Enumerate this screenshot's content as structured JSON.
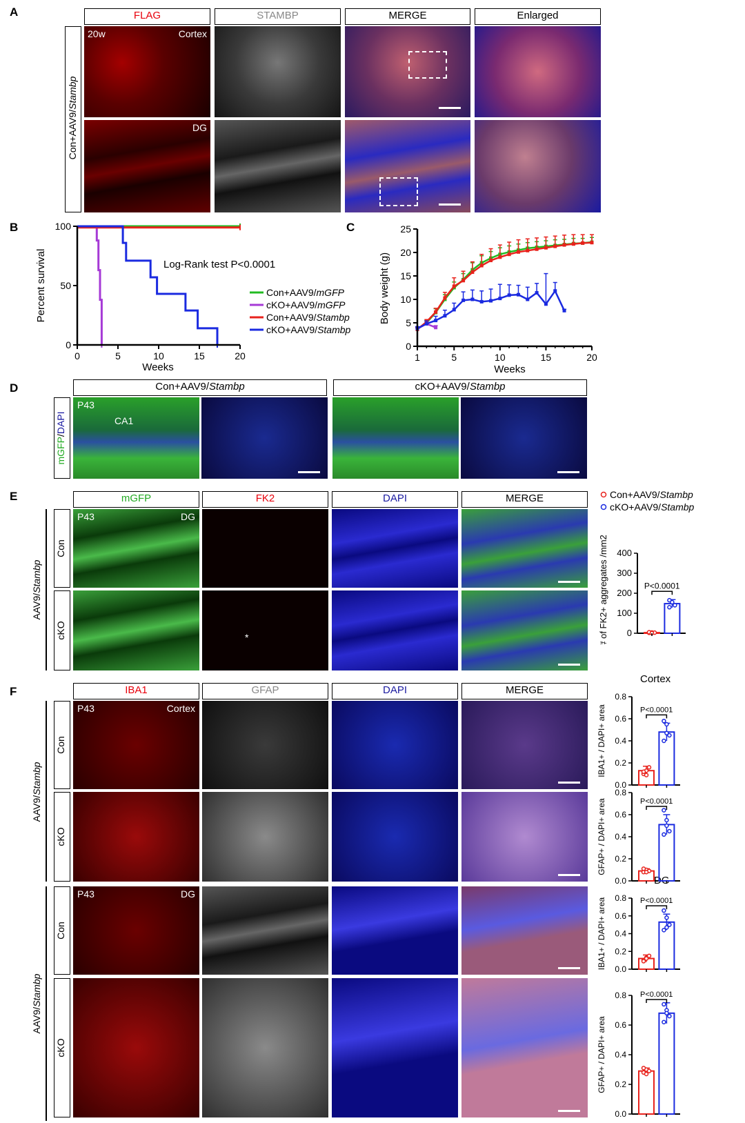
{
  "panel_letters": {
    "a": "A",
    "b": "B",
    "c": "C",
    "d": "D",
    "e": "E",
    "f": "F"
  },
  "panelA": {
    "headers": [
      "FLAG",
      "STAMBP",
      "MERGE",
      "Enlarged"
    ],
    "header_colors": [
      "#e8000b",
      "#888888",
      "#000000",
      "#000000"
    ],
    "row_label": "Con+AAV9/Stambp",
    "row_label_prefix": "Con+AAV9/",
    "row_label_gene": "Stambp",
    "age": "20w",
    "region1": "Cortex",
    "region2": "DG"
  },
  "panelB": {
    "chart_data": {
      "type": "line",
      "title": "",
      "xlabel": "Weeks",
      "ylabel": "Percent survival",
      "xlim": [
        0,
        20
      ],
      "ylim": [
        0,
        100
      ],
      "xticks": [
        "0",
        "5",
        "10",
        "15",
        "20"
      ],
      "yticks": [
        "0",
        "50",
        "100"
      ],
      "annotation": "Log-Rank test P<0.0001",
      "legend": [
        {
          "prefix": "Con+AAV9/",
          "gene": "mGFP",
          "color": "#22bb22"
        },
        {
          "prefix": "cKO+AAV9/",
          "gene": "mGFP",
          "color": "#a63ad6"
        },
        {
          "prefix": "Con+AAV9/",
          "gene": "Stambp",
          "color": "#e8221c"
        },
        {
          "prefix": "cKO+AAV9/",
          "gene": "Stambp",
          "color": "#1a2ae0"
        }
      ],
      "series": [
        {
          "name": "Con+AAV9/mGFP",
          "color": "#22bb22",
          "steps": [
            [
              0,
              100
            ],
            [
              20,
              100
            ]
          ]
        },
        {
          "name": "cKO+AAV9/mGFP",
          "color": "#a63ad6",
          "steps": [
            [
              0,
              100
            ],
            [
              2.4,
              100
            ],
            [
              2.4,
              88
            ],
            [
              2.6,
              88
            ],
            [
              2.6,
              63
            ],
            [
              2.8,
              63
            ],
            [
              2.8,
              38
            ],
            [
              3,
              38
            ],
            [
              3,
              0
            ]
          ]
        },
        {
          "name": "Con+AAV9/Stambp",
          "color": "#e8221c",
          "steps": [
            [
              0,
              99
            ],
            [
              20,
              99
            ]
          ]
        },
        {
          "name": "cKO+AAV9/Stambp",
          "color": "#1a2ae0",
          "steps": [
            [
              0,
              100
            ],
            [
              5.6,
              100
            ],
            [
              5.6,
              86
            ],
            [
              6,
              86
            ],
            [
              6,
              71
            ],
            [
              9,
              71
            ],
            [
              9,
              57
            ],
            [
              9.8,
              57
            ],
            [
              9.8,
              43
            ],
            [
              13.3,
              43
            ],
            [
              13.3,
              29
            ],
            [
              14.8,
              29
            ],
            [
              14.8,
              14
            ],
            [
              17.2,
              14
            ],
            [
              17.2,
              0
            ]
          ]
        }
      ]
    }
  },
  "panelC": {
    "chart_data": {
      "type": "line",
      "title": "",
      "xlabel": "Weeks",
      "ylabel": "Body weight  (g)",
      "xlim": [
        1,
        20
      ],
      "ylim": [
        0,
        25
      ],
      "xticks": [
        "1",
        "5",
        "10",
        "15",
        "20"
      ],
      "yticks": [
        "0",
        "5",
        "10",
        "15",
        "20",
        "25"
      ],
      "series": [
        {
          "name": "Con+AAV9/mGFP",
          "color": "#22bb22",
          "x": [
            1,
            2,
            3,
            4,
            5,
            6,
            7,
            8,
            9,
            10,
            11,
            12,
            13,
            14,
            15,
            16,
            17,
            18,
            19,
            20
          ],
          "y": [
            3.7,
            5.0,
            7.2,
            10.0,
            12.5,
            14.2,
            16.3,
            17.8,
            18.8,
            19.6,
            20.1,
            20.5,
            20.9,
            21.1,
            21.3,
            21.5,
            21.7,
            21.9,
            22.0,
            22.2
          ],
          "err": [
            0.3,
            0.5,
            0.8,
            1.0,
            1.2,
            1.3,
            1.5,
            1.5,
            1.4,
            1.4,
            1.3,
            1.3,
            1.2,
            1.2,
            1.2,
            1.2,
            1.1,
            1.1,
            1.0,
            1.0
          ]
        },
        {
          "name": "cKO+AAV9/mGFP",
          "color": "#a63ad6",
          "x": [
            1,
            2,
            3
          ],
          "y": [
            3.7,
            4.8,
            4.0
          ],
          "err": [
            0.3,
            0.5,
            0.4
          ]
        },
        {
          "name": "Con+AAV9/Stambp",
          "color": "#e8221c",
          "x": [
            1,
            2,
            3,
            4,
            5,
            6,
            7,
            8,
            9,
            10,
            11,
            12,
            13,
            14,
            15,
            16,
            17,
            18,
            19,
            20
          ],
          "y": [
            3.6,
            5.2,
            7.3,
            10.3,
            12.8,
            14.0,
            15.8,
            17.2,
            18.3,
            19.0,
            19.6,
            20.1,
            20.4,
            20.7,
            21.0,
            21.3,
            21.6,
            21.8,
            22.0,
            22.1
          ],
          "err": [
            0.3,
            0.5,
            0.8,
            1.2,
            1.8,
            2.0,
            2.2,
            2.4,
            2.5,
            2.6,
            2.6,
            2.6,
            2.5,
            2.4,
            2.3,
            2.2,
            2.1,
            2.0,
            1.8,
            1.7
          ]
        },
        {
          "name": "cKO+AAV9/Stambp",
          "color": "#1a2ae0",
          "x": [
            1,
            2,
            3,
            4,
            5,
            6,
            7,
            8,
            9,
            10,
            11,
            12,
            13,
            14,
            15,
            16,
            17
          ],
          "y": [
            3.8,
            4.8,
            5.5,
            6.5,
            7.8,
            9.8,
            10.0,
            9.5,
            9.7,
            10.2,
            10.9,
            11.0,
            10.0,
            11.4,
            9.0,
            11.8,
            7.6
          ],
          "err": [
            0.4,
            0.6,
            0.9,
            1.2,
            1.4,
            1.8,
            2.0,
            2.3,
            2.5,
            3.0,
            2.2,
            2.0,
            2.6,
            2.0,
            6.5,
            1.8,
            0.3
          ]
        }
      ]
    }
  },
  "panelD": {
    "headers": [
      {
        "prefix": "Con+AAV9/",
        "gene": "Stambp"
      },
      {
        "prefix": "cKO+AAV9/",
        "gene": "Stambp"
      }
    ],
    "side_label_green": "mGFP",
    "side_label_sep": "/",
    "side_label_blue": "DAPI",
    "age": "P43",
    "region": "CA1"
  },
  "panelE": {
    "headers": [
      "mGFP",
      "FK2",
      "DAPI",
      "MERGE"
    ],
    "header_colors": [
      "#22aa22",
      "#e8000b",
      "#1a1aa0",
      "#000000"
    ],
    "group_prefix": "AAV9/",
    "group_gene": "Stambp",
    "rows": [
      "Con",
      "cKO"
    ],
    "age": "P43",
    "region": "DG",
    "asterisk": "*",
    "legend": [
      {
        "prefix": "Con+AAV9/",
        "gene": "Stambp",
        "color": "#e8221c"
      },
      {
        "prefix": "cKO+AAV9/",
        "gene": "Stambp",
        "color": "#1a2ae0"
      }
    ],
    "chart_data": {
      "type": "bar",
      "categories": [
        "Con+AAV9/Stambp",
        "cKO+AAV9/Stambp"
      ],
      "values": [
        3,
        148
      ],
      "errors": [
        2,
        20
      ],
      "points": [
        [
          2,
          4,
          3,
          5,
          1
        ],
        [
          165,
          155,
          140,
          130
        ]
      ],
      "colors": [
        "#e8221c",
        "#1a2ae0"
      ],
      "ylabel": "# of FK2+ aggregates /mm2",
      "ylim": [
        0,
        400
      ],
      "yticks": [
        "0",
        "100",
        "200",
        "300",
        "400"
      ],
      "pvalue": "P<0.0001"
    }
  },
  "panelF": {
    "headers": [
      "IBA1",
      "GFAP",
      "DAPI",
      "MERGE"
    ],
    "header_colors": [
      "#e8000b",
      "#888888",
      "#1a1aa0",
      "#000000"
    ],
    "group_prefix": "AAV9/",
    "group_gene": "Stambp",
    "rows": [
      "Con",
      "cKO",
      "Con",
      "cKO"
    ],
    "age": "P43",
    "region_cortex": "Cortex",
    "region_dg": "DG",
    "chart_titles": [
      "Cortex",
      "DG"
    ],
    "chart_data": [
      {
        "type": "bar",
        "ylabel": "IBA1+ / DAPI+ area",
        "ylim": [
          0,
          0.8
        ],
        "yticks": [
          "0.0",
          "0.2",
          "0.4",
          "0.6",
          "0.8"
        ],
        "categories": [
          "Con",
          "cKO"
        ],
        "values": [
          0.13,
          0.48
        ],
        "errors": [
          0.04,
          0.08
        ],
        "points": [
          [
            0.1,
            0.13,
            0.16,
            0.12,
            0.09
          ],
          [
            0.58,
            0.55,
            0.45,
            0.4,
            0.47
          ]
        ],
        "colors": [
          "#e8221c",
          "#1a2ae0"
        ],
        "pvalue": "P<0.0001"
      },
      {
        "type": "bar",
        "ylabel": "GFAP+ / DAPI+ area",
        "ylim": [
          0,
          0.8
        ],
        "yticks": [
          "0.0",
          "0.2",
          "0.4",
          "0.6",
          "0.8"
        ],
        "categories": [
          "Con",
          "cKO"
        ],
        "values": [
          0.09,
          0.51
        ],
        "errors": [
          0.02,
          0.09
        ],
        "points": [
          [
            0.08,
            0.1,
            0.09,
            0.11,
            0.08
          ],
          [
            0.64,
            0.55,
            0.45,
            0.42,
            0.5
          ]
        ],
        "colors": [
          "#e8221c",
          "#1a2ae0"
        ],
        "pvalue": "P<0.0001"
      },
      {
        "type": "bar",
        "ylabel": "IBA1+ / DAPI+ area",
        "ylim": [
          0,
          0.8
        ],
        "yticks": [
          "0.0",
          "0.2",
          "0.4",
          "0.6",
          "0.8"
        ],
        "categories": [
          "Con",
          "cKO"
        ],
        "values": [
          0.12,
          0.53
        ],
        "errors": [
          0.04,
          0.09
        ],
        "points": [
          [
            0.1,
            0.13,
            0.15,
            0.09,
            0.12
          ],
          [
            0.66,
            0.58,
            0.5,
            0.44,
            0.47
          ]
        ],
        "colors": [
          "#e8221c",
          "#1a2ae0"
        ],
        "pvalue": "P<0.0001"
      },
      {
        "type": "bar",
        "ylabel": "GFAP+ / DAPI+ area",
        "ylim": [
          0,
          0.8
        ],
        "yticks": [
          "0.0",
          "0.2",
          "0.4",
          "0.6",
          "0.8"
        ],
        "categories": [
          "Con",
          "cKO"
        ],
        "values": [
          0.29,
          0.68
        ],
        "errors": [
          0.02,
          0.07
        ],
        "points": [
          [
            0.28,
            0.3,
            0.29,
            0.31,
            0.27
          ],
          [
            0.74,
            0.7,
            0.66,
            0.62,
            0.68
          ]
        ],
        "colors": [
          "#e8221c",
          "#1a2ae0"
        ],
        "pvalue": "P<0.0001"
      }
    ]
  }
}
